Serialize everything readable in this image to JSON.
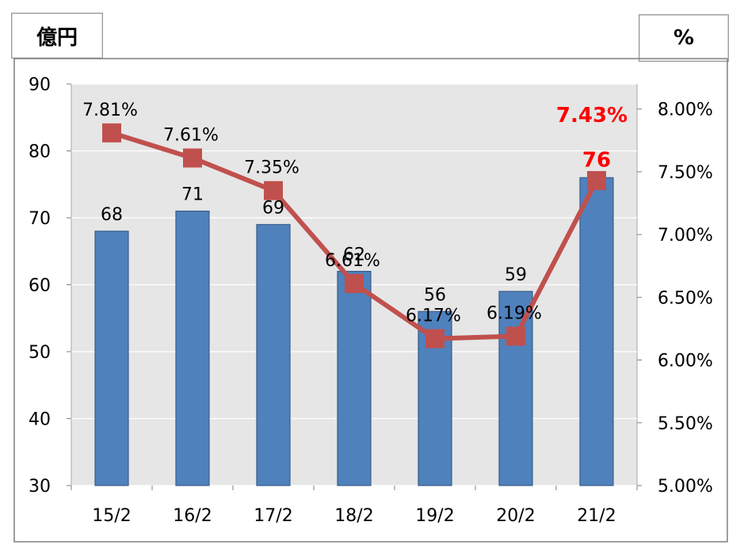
{
  "units": {
    "left": "億円",
    "right": "%"
  },
  "chart_data": {
    "type": "bar",
    "categories": [
      "15/2",
      "16/2",
      "17/2",
      "18/2",
      "19/2",
      "20/2",
      "21/2"
    ],
    "series": [
      {
        "type": "bar",
        "values": [
          68,
          71,
          69,
          62,
          56,
          59,
          76
        ],
        "labels": [
          "68",
          "71",
          "69",
          "62",
          "56",
          "59",
          "76"
        ],
        "color": "#4f81bd"
      },
      {
        "type": "line",
        "values": [
          7.81,
          7.61,
          7.35,
          6.61,
          6.17,
          6.19,
          7.43
        ],
        "labels": [
          "7.81%",
          "7.61%",
          "7.35%",
          "6.61%",
          "6.17%",
          "6.19%",
          "7.43%"
        ],
        "color": "#c0504d"
      }
    ],
    "highlight_color": "#ff0000",
    "highlight_index": 6,
    "y_left": {
      "min": 30,
      "max": 90,
      "step": 10,
      "ticks": [
        "30",
        "40",
        "50",
        "60",
        "70",
        "80",
        "90"
      ]
    },
    "y_right": {
      "min": 5.0,
      "max": 8.2,
      "step": 0.5,
      "ticks": [
        "5.00%",
        "5.50%",
        "6.00%",
        "6.50%",
        "7.00%",
        "7.50%",
        "8.00%"
      ]
    },
    "grid": true,
    "plot_background": "#e6e6e6"
  }
}
